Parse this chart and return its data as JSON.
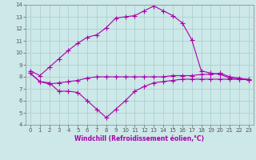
{
  "x": [
    0,
    1,
    2,
    3,
    4,
    5,
    6,
    7,
    8,
    9,
    10,
    11,
    12,
    13,
    14,
    15,
    16,
    17,
    18,
    19,
    20,
    21,
    22,
    23
  ],
  "line_top": [
    8.5,
    8.1,
    8.8,
    9.5,
    10.2,
    10.8,
    11.3,
    11.5,
    12.1,
    12.9,
    13.0,
    13.1,
    13.5,
    13.9,
    13.5,
    13.1,
    12.5,
    11.1,
    8.5,
    8.3,
    8.2,
    7.9,
    7.8,
    7.8
  ],
  "line_mid": [
    8.3,
    7.6,
    7.4,
    7.5,
    7.6,
    7.7,
    7.9,
    8.0,
    8.0,
    8.0,
    8.0,
    8.0,
    8.0,
    8.0,
    8.0,
    8.1,
    8.1,
    8.1,
    8.2,
    8.2,
    8.3,
    8.0,
    7.9,
    7.75
  ],
  "line_bot": [
    8.3,
    7.6,
    7.5,
    6.8,
    6.8,
    6.7,
    6.0,
    5.3,
    4.6,
    5.3,
    6.0,
    6.8,
    7.2,
    7.5,
    7.6,
    7.7,
    7.8,
    7.8,
    7.8,
    7.8,
    7.8,
    7.8,
    7.8,
    7.75
  ],
  "bg_color": "#cce8e8",
  "grid_color": "#aacccc",
  "line_color": "#aa00aa",
  "xlabel": "Windchill (Refroidissement éolien,°C)",
  "ylim": [
    4,
    14
  ],
  "xlim": [
    -0.5,
    23.5
  ],
  "yticks": [
    4,
    5,
    6,
    7,
    8,
    9,
    10,
    11,
    12,
    13,
    14
  ],
  "xticks": [
    0,
    1,
    2,
    3,
    4,
    5,
    6,
    7,
    8,
    9,
    10,
    11,
    12,
    13,
    14,
    15,
    16,
    17,
    18,
    19,
    20,
    21,
    22,
    23
  ],
  "marker": "+",
  "markersize": 4,
  "linewidth": 0.8,
  "tick_fontsize": 5.0,
  "xlabel_fontsize": 5.5
}
